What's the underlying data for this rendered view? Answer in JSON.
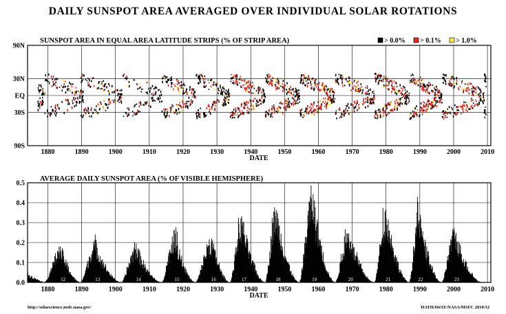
{
  "title": "DAILY SUNSPOT AREA AVERAGED OVER INDIVIDUAL SOLAR ROTATIONS",
  "footer": {
    "left": "http://solarscience.msfc.nasa.gov/",
    "right": "HATHAWAY/NASA/MSFC  2010/12"
  },
  "colors": {
    "background": "#ffffff",
    "level_low": "#000000",
    "level_mid": "#e8231a",
    "level_high": "#f5e642"
  },
  "chart_data": [
    {
      "type": "heatmap",
      "title": "SUNSPOT AREA IN EQUAL AREA LATITUDE STRIPS (% OF STRIP AREA)",
      "xlabel": "DATE",
      "ylabel": "",
      "xlim": [
        1874,
        2011
      ],
      "ylim": [
        "90S",
        "90N"
      ],
      "y_ticks": [
        "90N",
        "30N",
        "EQ",
        "30S",
        "90S"
      ],
      "x_ticks": [
        1880,
        1890,
        1900,
        1910,
        1920,
        1930,
        1940,
        1950,
        1960,
        1970,
        1980,
        1990,
        2000,
        2010
      ],
      "grid": true,
      "legend_position": "top-right",
      "legend": [
        {
          "label": "> 0.0%",
          "color": "#000000"
        },
        {
          "label": "> 0.1%",
          "color": "#e8231a"
        },
        {
          "label": "> 1.0%",
          "color": "#f5e642"
        }
      ],
      "wings": [
        {
          "start": 1874.0,
          "end": 1879.0,
          "strength": 0.45,
          "partial": true
        },
        {
          "start": 1878.9,
          "end": 1890.5,
          "strength": 0.55
        },
        {
          "start": 1889.6,
          "end": 1902.0,
          "strength": 0.6
        },
        {
          "start": 1901.7,
          "end": 1913.6,
          "strength": 0.45
        },
        {
          "start": 1913.6,
          "end": 1923.6,
          "strength": 0.65
        },
        {
          "start": 1923.6,
          "end": 1933.7,
          "strength": 0.7
        },
        {
          "start": 1933.8,
          "end": 1944.2,
          "strength": 0.85
        },
        {
          "start": 1944.2,
          "end": 1954.3,
          "strength": 0.9
        },
        {
          "start": 1954.3,
          "end": 1964.9,
          "strength": 1.0
        },
        {
          "start": 1964.9,
          "end": 1976.5,
          "strength": 0.8
        },
        {
          "start": 1976.5,
          "end": 1986.8,
          "strength": 0.95
        },
        {
          "start": 1986.8,
          "end": 1996.4,
          "strength": 0.95
        },
        {
          "start": 1996.4,
          "end": 2008.9,
          "strength": 0.85
        },
        {
          "start": 2008.9,
          "end": 2011.0,
          "strength": 0.4,
          "partial": true
        }
      ]
    },
    {
      "type": "area",
      "title": "AVERAGE DAILY SUNSPOT AREA (% OF VISIBLE HEMISPHERE)",
      "xlabel": "DATE",
      "ylabel": "",
      "xlim": [
        1874,
        2011
      ],
      "ylim": [
        0,
        0.5
      ],
      "y_ticks": [
        "0.0",
        "0.1",
        "0.2",
        "0.3",
        "0.4",
        "0.5"
      ],
      "x_ticks": [
        1880,
        1890,
        1900,
        1910,
        1920,
        1930,
        1940,
        1950,
        1960,
        1970,
        1980,
        1990,
        2000,
        2010
      ],
      "grid": true,
      "cycles": [
        {
          "label": "12",
          "min": 1878.9,
          "max": 1883.9,
          "peak": 0.19
        },
        {
          "label": "13",
          "min": 1889.6,
          "max": 1894.1,
          "peak": 0.22
        },
        {
          "label": "14",
          "min": 1901.7,
          "max": 1906.2,
          "peak": 0.2
        },
        {
          "label": "15",
          "min": 1913.6,
          "max": 1917.6,
          "peak": 0.27
        },
        {
          "label": "16",
          "min": 1923.6,
          "max": 1928.4,
          "peak": 0.24
        },
        {
          "label": "17",
          "min": 1933.8,
          "max": 1937.4,
          "peak": 0.35
        },
        {
          "label": "18",
          "min": 1944.2,
          "max": 1947.5,
          "peak": 0.41
        },
        {
          "label": "19",
          "min": 1954.3,
          "max": 1958.2,
          "peak": 0.5
        },
        {
          "label": "20",
          "min": 1964.9,
          "max": 1968.9,
          "peak": 0.28
        },
        {
          "label": "21",
          "min": 1976.5,
          "max": 1980.0,
          "peak": 0.4
        },
        {
          "label": "22",
          "min": 1986.8,
          "max": 1989.6,
          "peak": 0.39
        },
        {
          "label": "23",
          "min": 1996.4,
          "max": 2000.3,
          "peak": 0.29
        }
      ]
    }
  ]
}
